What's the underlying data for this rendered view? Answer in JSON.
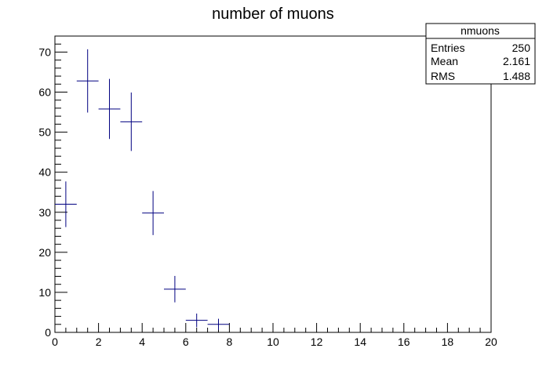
{
  "chart_data": {
    "type": "scatter",
    "title": "number of muons",
    "xlabel": "",
    "ylabel": "",
    "xlim": [
      0,
      20
    ],
    "ylim": [
      0,
      74
    ],
    "xticks": [
      "0",
      "2",
      "4",
      "6",
      "8",
      "10",
      "12",
      "14",
      "16",
      "18",
      "20"
    ],
    "yticks": [
      "0",
      "10",
      "20",
      "30",
      "40",
      "50",
      "60",
      "70"
    ],
    "bin_half_width": 0.5,
    "series": [
      {
        "color": "#000080",
        "points": [
          {
            "x": 0.5,
            "y": 32,
            "err": 5.7
          },
          {
            "x": 1.5,
            "y": 62.8,
            "err": 7.9
          },
          {
            "x": 2.5,
            "y": 55.8,
            "err": 7.5
          },
          {
            "x": 3.5,
            "y": 52.6,
            "err": 7.3
          },
          {
            "x": 4.5,
            "y": 29.8,
            "err": 5.5
          },
          {
            "x": 5.5,
            "y": 10.8,
            "err": 3.3
          },
          {
            "x": 6.5,
            "y": 3,
            "err": 1.7
          },
          {
            "x": 7.5,
            "y": 2,
            "err": 1.4
          }
        ]
      }
    ],
    "stats_box": {
      "title": "nmuons",
      "rows": [
        {
          "label": "Entries",
          "value": "250"
        },
        {
          "label": "Mean",
          "value": "2.161"
        },
        {
          "label": "RMS",
          "value": "1.488"
        }
      ]
    },
    "grid": false
  }
}
